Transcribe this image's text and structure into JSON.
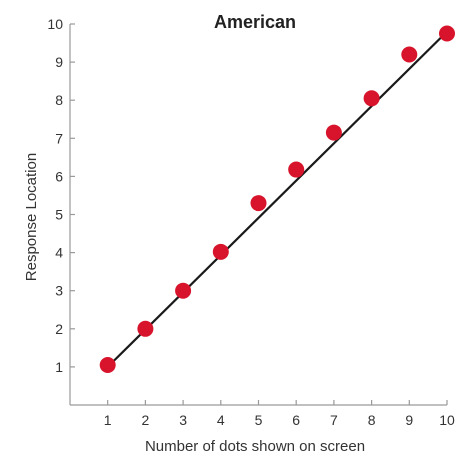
{
  "chart_data": {
    "type": "scatter",
    "title": "American",
    "xlabel": "Number of dots shown on screen",
    "ylabel": "Response Location",
    "xlim": [
      0,
      10
    ],
    "ylim": [
      0,
      10
    ],
    "x_ticks": [
      1,
      2,
      3,
      4,
      5,
      6,
      7,
      8,
      9,
      10
    ],
    "y_ticks": [
      1,
      2,
      3,
      4,
      5,
      6,
      7,
      8,
      9,
      10
    ],
    "grid": false,
    "legend": "none",
    "series": [
      {
        "x": [
          1,
          2,
          3,
          4,
          5,
          6,
          7,
          8,
          9,
          10
        ],
        "y": [
          1.05,
          2.0,
          3.0,
          4.02,
          5.3,
          6.18,
          7.15,
          8.05,
          9.2,
          9.75
        ]
      }
    ],
    "fit_line": {
      "from": [
        1,
        1.0
      ],
      "to": [
        10,
        9.8
      ]
    },
    "colors": {
      "points": "#d7142b",
      "fit_line": "#1a1a1a",
      "axes": "#9a9a9a"
    }
  }
}
